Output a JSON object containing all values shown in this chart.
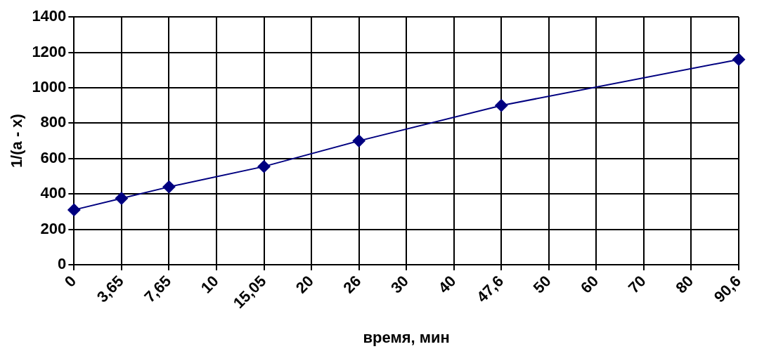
{
  "chart_data": {
    "type": "line",
    "xlabel": "время, мин",
    "ylabel": "1/(a - x)",
    "categories": [
      "0",
      "3,65",
      "7,65",
      "10",
      "15,05",
      "20",
      "26",
      "30",
      "40",
      "47,6",
      "50",
      "60",
      "70",
      "80",
      "90,6"
    ],
    "series": [
      {
        "color": "#000080",
        "values": [
          310,
          375,
          440,
          null,
          555,
          null,
          700,
          null,
          null,
          900,
          null,
          null,
          null,
          null,
          1160
        ]
      }
    ],
    "ylim": [
      0,
      1400
    ],
    "yticks": [
      0,
      200,
      400,
      600,
      800,
      1000,
      1200,
      1400
    ],
    "grid": true,
    "legend": false,
    "marker": "diamond",
    "line_style": "solid"
  }
}
